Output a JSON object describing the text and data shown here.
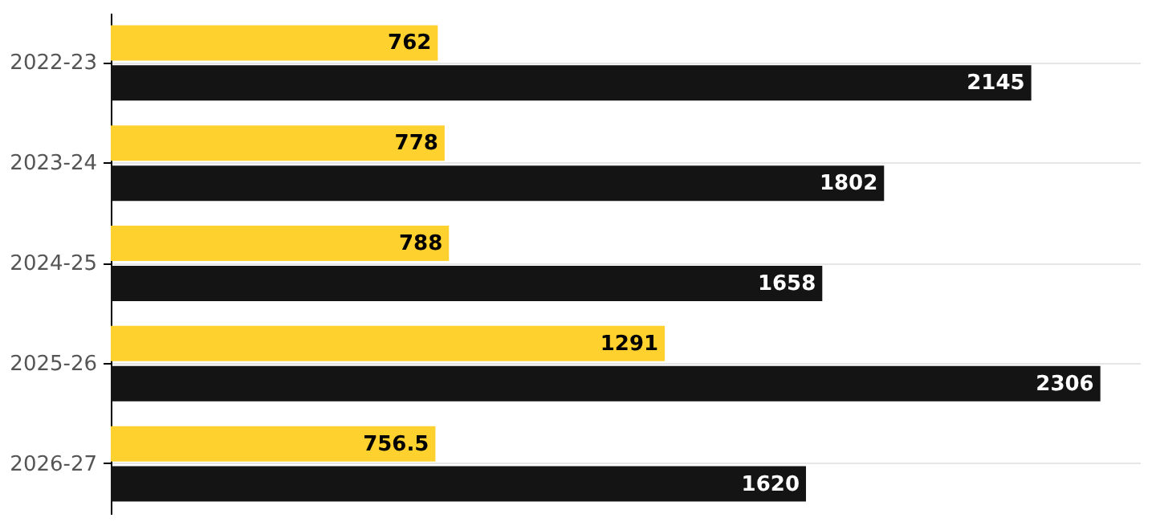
{
  "chart_data": {
    "type": "bar",
    "orientation": "horizontal",
    "categories": [
      "2022-23",
      "2023-24",
      "2024-25",
      "2025-26",
      "2026-27"
    ],
    "series": [
      {
        "color": "#ffd12e",
        "values": [
          762,
          778,
          788,
          1291,
          756.5
        ]
      },
      {
        "color": "#141414",
        "values": [
          2145,
          1802,
          1658,
          2306,
          1620
        ]
      }
    ],
    "data_labels": true,
    "grid": "y",
    "tick_labels": "y"
  }
}
